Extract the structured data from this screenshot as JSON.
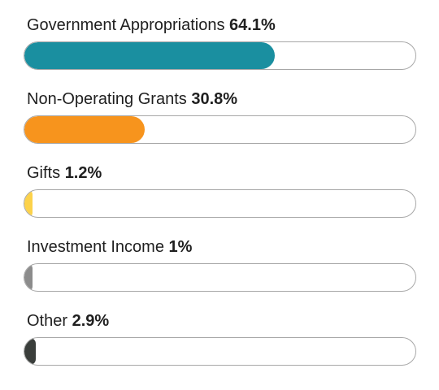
{
  "chart_data": {
    "type": "bar",
    "orientation": "horizontal",
    "categories": [
      "Government Appropriations",
      "Non-Operating Grants",
      "Gifts",
      "Investment Income",
      "Other"
    ],
    "value_labels": [
      "64.1%",
      "30.8%",
      "1.2%",
      "1%",
      "2.9%"
    ],
    "values": [
      64.1,
      30.8,
      1.2,
      1.0,
      2.9
    ],
    "colors": [
      "#1a8fa0",
      "#f7941d",
      "#fcd24b",
      "#8c8c8c",
      "#3a3e3b"
    ],
    "xlim": [
      0,
      100
    ]
  }
}
